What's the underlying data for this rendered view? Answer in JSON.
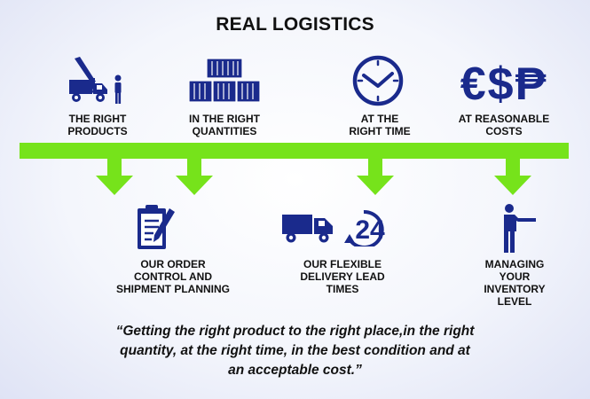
{
  "title": "REAL LOGISTICS",
  "colors": {
    "icon_blue": "#1a2a8c",
    "arrow_green": "#76e31b"
  },
  "top_items": [
    {
      "icon": "crane-truck-icon",
      "label": "THE RIGHT\nPRODUCTS"
    },
    {
      "icon": "containers-icon",
      "label": "IN THE RIGHT\nQUANTITIES"
    },
    {
      "icon": "clock-icon",
      "label": "AT THE\nRIGHT TIME"
    },
    {
      "icon": "currency-icon",
      "label": "AT REASONABLE\nCOSTS",
      "symbols": "€$₱"
    }
  ],
  "bottom_items": [
    {
      "icon": "clipboard-icon",
      "label": "OUR ORDER\nCONTROL AND\nSHIPMENT PLANNING"
    },
    {
      "icon": "delivery-24-icon",
      "label": "OUR FLEXIBLE\nDELIVERY LEAD\nTIMES",
      "number": "24"
    },
    {
      "icon": "pointing-person-icon",
      "label": "MANAGING\nYOUR\nINVENTORY\nLEVEL"
    }
  ],
  "quote": "“Getting the right product to the right place,in the right\nquantity, at the right time, in the best condition and at\nan acceptable cost.”"
}
